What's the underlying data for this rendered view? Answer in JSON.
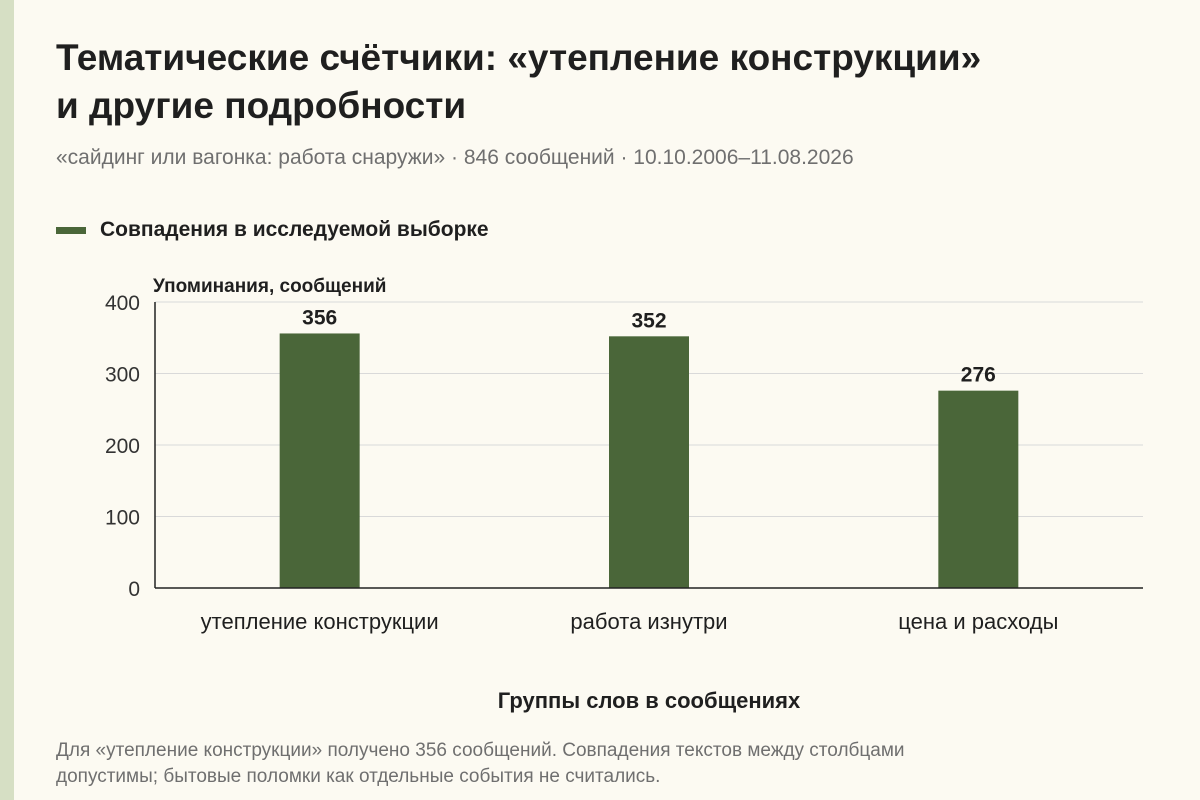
{
  "title_lines": [
    "Тематические счётчики: «утепление конструкции»",
    "и другие подробности"
  ],
  "subtitle": "«сайдинг или вагонка: работа снаружи» · 846 сообщений · 10.10.2006–11.08.2026",
  "footnote_lines": [
    "Для «утепление конструкции» получено 356 сообщений. Совпадения текстов между столбцами",
    "допустимы; бытовые поломки как отдельные события не считались."
  ],
  "colors": {
    "bar": "#4a6639",
    "background": "#fcfaf2",
    "grid": "#d9d9d9",
    "axis": "#222222",
    "accent_stripe": "#d6dfc4"
  },
  "chart_data": {
    "type": "bar",
    "categories": [
      "утепление конструкции",
      "работа изнутри",
      "цена и расходы"
    ],
    "series": [
      {
        "name": "Совпадения в исследуемой выборке",
        "values": [
          356,
          352,
          276
        ]
      }
    ],
    "value_labels": [
      "356",
      "352",
      "276"
    ],
    "ylabel": "Упоминания, сообщений",
    "xlabel": "Группы слов в сообщениях",
    "ylim": [
      0,
      400
    ],
    "yticks": [
      0,
      100,
      200,
      300,
      400
    ],
    "ytick_labels": [
      "0",
      "100",
      "200",
      "300",
      "400"
    ],
    "grid": true,
    "legend_position": "top-left"
  }
}
